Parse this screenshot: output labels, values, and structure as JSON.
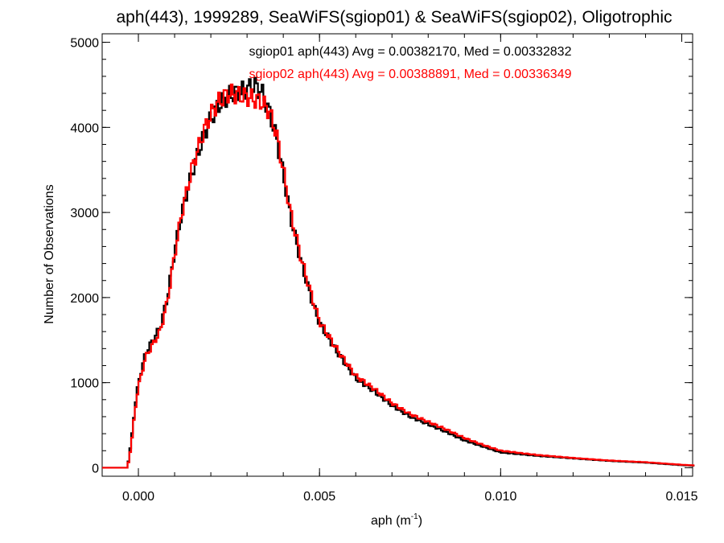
{
  "chart_data": {
    "type": "histogram",
    "title": "aph(443), 1999289, SeaWiFS(sgiop01) & SeaWiFS(sgiop02), Oligotrophic",
    "xlabel": "aph (m",
    "xlabel_sup": "-1",
    "xlabel_suffix": ")",
    "ylabel": "Number of Observations",
    "xlim": [
      -0.001,
      0.0153
    ],
    "ylim": [
      -100,
      5100
    ],
    "xticks": [
      0.0,
      0.005,
      0.01,
      0.015
    ],
    "xtick_labels": [
      "0.000",
      "0.005",
      "0.010",
      "0.015"
    ],
    "yticks": [
      0,
      1000,
      2000,
      3000,
      4000,
      5000
    ],
    "ytick_labels": [
      "0",
      "1000",
      "2000",
      "3000",
      "4000",
      "5000"
    ],
    "grid": false,
    "series": [
      {
        "name": "sgiop01",
        "color": "#000000",
        "stat_text": "sgiop01 aph(443) Avg = 0.00382170, Med = 0.00332832",
        "x": [
          -0.0003,
          -0.0002,
          -0.0001,
          0.0,
          0.0002,
          0.0004,
          0.0006,
          0.0008,
          0.001,
          0.0012,
          0.0015,
          0.0018,
          0.002,
          0.0022,
          0.0025,
          0.0028,
          0.003,
          0.0032,
          0.0034,
          0.0036,
          0.0038,
          0.004,
          0.0042,
          0.0045,
          0.0048,
          0.005,
          0.0055,
          0.006,
          0.0065,
          0.007,
          0.0075,
          0.008,
          0.0085,
          0.009,
          0.0095,
          0.01,
          0.011,
          0.012,
          0.013,
          0.014,
          0.0145,
          0.015,
          0.0153
        ],
        "y": [
          0,
          300,
          700,
          1000,
          1350,
          1500,
          1650,
          2000,
          2550,
          3000,
          3500,
          3900,
          4100,
          4250,
          4380,
          4420,
          4450,
          4500,
          4420,
          4200,
          3900,
          3450,
          2950,
          2400,
          1950,
          1700,
          1350,
          1050,
          900,
          730,
          600,
          510,
          420,
          320,
          250,
          180,
          140,
          110,
          80,
          60,
          45,
          30,
          25
        ]
      },
      {
        "name": "sgiop02",
        "color": "#ff0000",
        "stat_text": "sgiop02 aph(443) Avg = 0.00388891, Med = 0.00336349",
        "x": [
          -0.0003,
          -0.0002,
          -0.0001,
          0.0,
          0.0002,
          0.0004,
          0.0006,
          0.0008,
          0.001,
          0.0012,
          0.0015,
          0.0018,
          0.002,
          0.0022,
          0.0025,
          0.0028,
          0.003,
          0.0032,
          0.0034,
          0.0036,
          0.0038,
          0.004,
          0.0042,
          0.0045,
          0.0048,
          0.005,
          0.0055,
          0.006,
          0.0065,
          0.007,
          0.0075,
          0.008,
          0.0085,
          0.009,
          0.0095,
          0.01,
          0.011,
          0.012,
          0.013,
          0.014,
          0.0145,
          0.015,
          0.0153
        ],
        "y": [
          0,
          250,
          650,
          950,
          1300,
          1450,
          1600,
          1950,
          2500,
          3000,
          3550,
          3950,
          4150,
          4300,
          4400,
          4380,
          4360,
          4330,
          4300,
          4200,
          3950,
          3500,
          3000,
          2450,
          2000,
          1720,
          1380,
          1080,
          930,
          760,
          630,
          540,
          450,
          350,
          270,
          200,
          150,
          115,
          85,
          65,
          50,
          35,
          28
        ]
      }
    ]
  }
}
